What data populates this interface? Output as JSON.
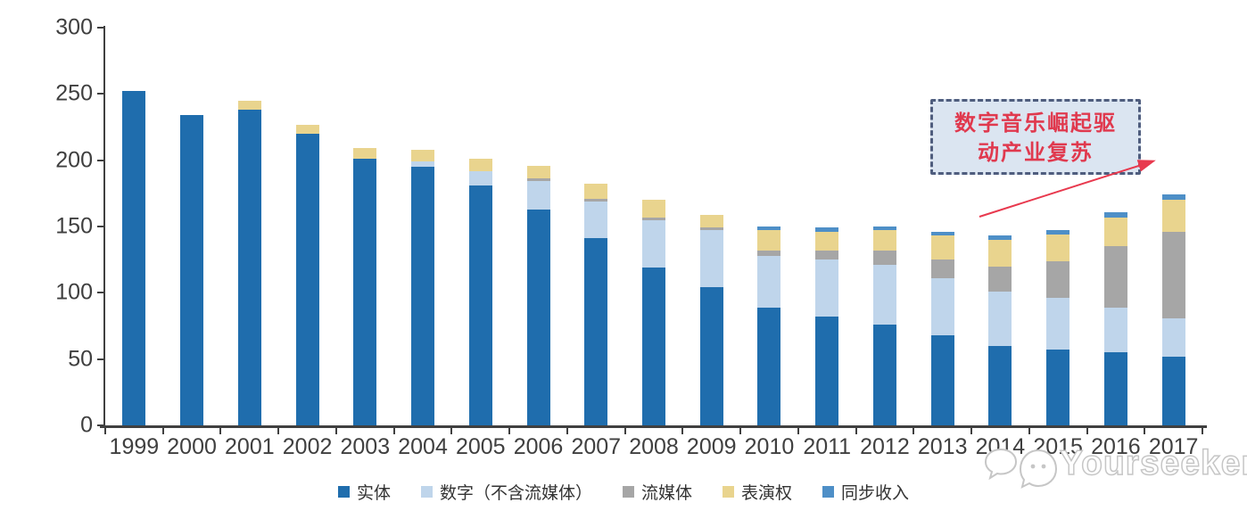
{
  "chart_data": {
    "type": "bar",
    "stacked": true,
    "title": "",
    "xlabel": "",
    "ylabel": "",
    "categories": [
      "1999",
      "2000",
      "2001",
      "2002",
      "2003",
      "2004",
      "2005",
      "2006",
      "2007",
      "2008",
      "2009",
      "2010",
      "2011",
      "2012",
      "2013",
      "2014",
      "2015",
      "2016",
      "2017"
    ],
    "series": [
      {
        "name": "实体",
        "color": "#1F6DAD",
        "values": [
          252,
          234,
          238,
          220,
          201,
          195,
          181,
          163,
          141,
          119,
          104,
          89,
          82,
          76,
          68,
          60,
          57,
          55,
          52
        ]
      },
      {
        "name": "数字（不含流媒体）",
        "color": "#BFD5EB",
        "values": [
          0,
          0,
          0,
          0,
          0,
          4,
          11,
          21,
          28,
          36,
          43,
          39,
          43,
          45,
          43,
          41,
          39,
          34,
          29
        ]
      },
      {
        "name": "流媒体",
        "color": "#A6A6A6",
        "values": [
          0,
          0,
          0,
          0,
          0,
          0,
          0,
          2,
          2,
          2,
          2,
          4,
          7,
          11,
          14,
          19,
          28,
          46,
          65
        ]
      },
      {
        "name": "表演权",
        "color": "#E9D48E",
        "values": [
          0,
          0,
          7,
          7,
          8,
          9,
          9,
          10,
          11,
          13,
          10,
          15,
          14,
          15,
          18,
          20,
          20,
          22,
          24
        ]
      },
      {
        "name": "同步收入",
        "color": "#4E8FC7",
        "values": [
          0,
          0,
          0,
          0,
          0,
          0,
          0,
          0,
          0,
          0,
          0,
          3,
          3,
          3,
          3,
          3,
          3,
          4,
          4
        ]
      }
    ],
    "ylim": [
      0,
      300
    ],
    "yticks": [
      0,
      50,
      100,
      150,
      200,
      250,
      300
    ],
    "grid": false,
    "legend_position": "bottom"
  },
  "annotation": {
    "text_line1": "数字音乐崛起驱",
    "text_line2": "动产业复苏",
    "fill_color": "#DBE5F1",
    "border_color": "#4F5D7E",
    "text_color": "#E0394E",
    "arrow_color": "#E8394E"
  },
  "watermark": {
    "brand": "Yourseeker"
  },
  "colors": {
    "axis": "#404040",
    "tick_label": "#3F3F3F",
    "background": "#FFFFFF"
  }
}
